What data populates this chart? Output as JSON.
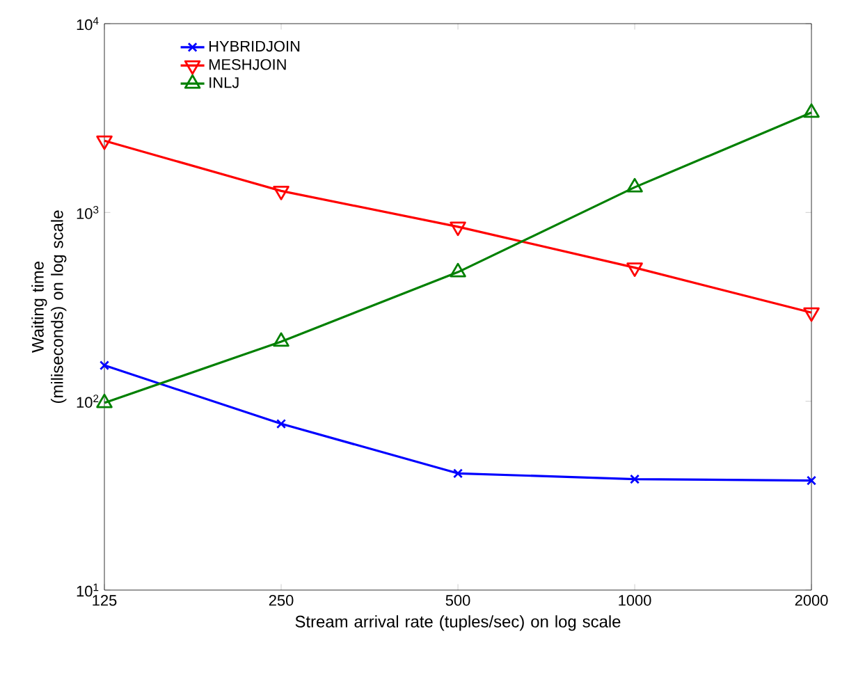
{
  "chart_data": {
    "type": "line",
    "xlabel": "Stream arrival rate (tuples/sec) on log scale",
    "ylabel": "Waiting time (miliseconds) on log scale",
    "x": [
      125,
      250,
      500,
      1000,
      2000
    ],
    "series": [
      {
        "name": "HYBRIDJOIN",
        "color": "#0000ff",
        "marker": "cross",
        "values": [
          155,
          76,
          41.5,
          38.7,
          38
        ]
      },
      {
        "name": "MESHJOIN",
        "color": "#ff0000",
        "marker": "triangle-down",
        "values": [
          2400,
          1300,
          840,
          510,
          295
        ]
      },
      {
        "name": "INLJ",
        "color": "#008000",
        "marker": "triangle",
        "values": [
          98,
          207,
          483,
          1360,
          3380
        ]
      }
    ],
    "log": "xy",
    "xlim": [
      125,
      2000
    ],
    "ylim": [
      10,
      10000
    ],
    "xticks": [
      125,
      250,
      500,
      1000,
      2000
    ],
    "yticks": [
      {
        "value": 10,
        "label": "10$^{1}$"
      },
      {
        "value": 100,
        "label": "10$^{2}$"
      },
      {
        "value": 1000,
        "label": "10$^{3}$"
      },
      {
        "value": 10000,
        "label": "10$^{4}$"
      }
    ],
    "grid": false,
    "legend": "top left",
    "line_style": "solid"
  }
}
